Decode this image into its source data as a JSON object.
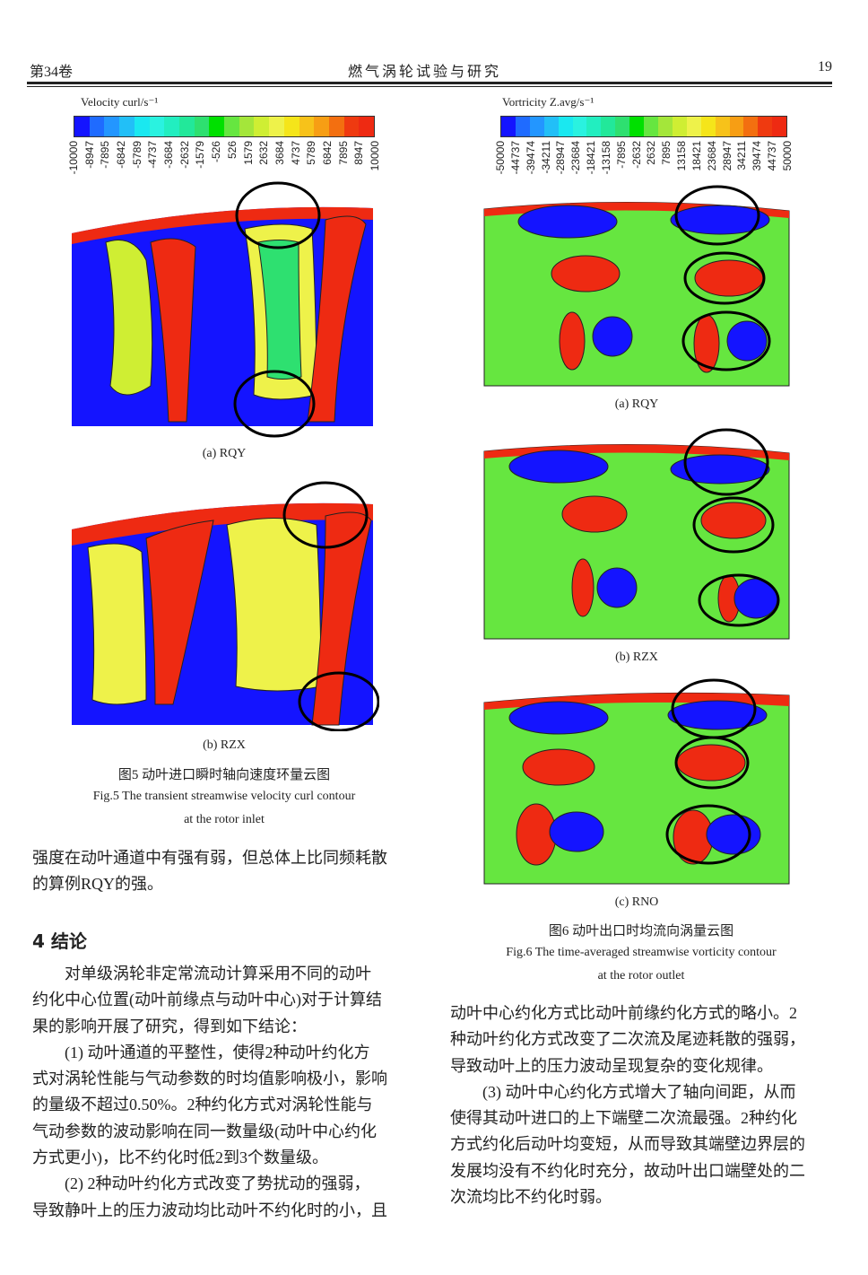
{
  "header": {
    "volume": "第34卷",
    "journal": "燃气涡轮试验与研究",
    "page": "19"
  },
  "fig5": {
    "colorbar_title": "Velocity curl/s⁻¹",
    "ticks": [
      "-10000",
      "-8947",
      "-7895",
      "-6842",
      "-5789",
      "-4737",
      "-3684",
      "-2632",
      "-1579",
      "-526",
      "526",
      "1579",
      "2632",
      "3684",
      "4737",
      "5789",
      "6842",
      "7895",
      "8947",
      "10000"
    ],
    "sub_a": "(a)  RQY",
    "sub_b": "(b)  RZX",
    "caption_cn": "图5  动叶进口瞬时轴向速度环量云图",
    "caption_en_1": "Fig.5  The transient streamwise velocity curl contour",
    "caption_en_2": "at the rotor inlet"
  },
  "fig6": {
    "colorbar_title": "Vortricity Z.avg/s⁻¹",
    "ticks": [
      "-50000",
      "-44737",
      "-39474",
      "-34211",
      "-28947",
      "-23684",
      "-18421",
      "-13158",
      "-7895",
      "-2632",
      "2632",
      "7895",
      "13158",
      "18421",
      "23684",
      "28947",
      "34211",
      "39474",
      "44737",
      "50000"
    ],
    "sub_a": "(a)  RQY",
    "sub_b": "(b)  RZX",
    "sub_c": "(c)  RNO",
    "caption_cn": "图6  动叶出口时均流向涡量云图",
    "caption_en_1": "Fig.6  The time-averaged streamwise vorticity contour",
    "caption_en_2": "at the rotor outlet"
  },
  "colors": [
    "#1414ff",
    "#1f6bff",
    "#2396ff",
    "#22bff7",
    "#1ae8f0",
    "#2af2e0",
    "#22eec0",
    "#22e89a",
    "#2ee070",
    "#00e000",
    "#66e640",
    "#a4e63a",
    "#cfee33",
    "#eef24a",
    "#f5e51a",
    "#f7c21a",
    "#f79e14",
    "#f36f10",
    "#ef3a10",
    "#ee2a12"
  ],
  "left_text": {
    "cont": [
      "强度在动叶通道中有强有弱，但总体上比同频耗散",
      "的算例RQY的强。"
    ],
    "heading": "4  结论",
    "para": [
      "对单级涡轮非定常流动计算采用不同的动叶",
      "约化中心位置(动叶前缘点与动叶中心)对于计算结",
      "果的影响开展了研究，得到如下结论：",
      "(1)  动叶通道的平整性，使得2种动叶约化方",
      "式对涡轮性能与气动参数的时均值影响极小，影响",
      "的量级不超过0.50%。2种约化方式对涡轮性能与",
      "气动参数的波动影响在同一数量级(动叶中心约化",
      "方式更小)，比不约化时低2到3个数量级。",
      "(2)  2种动叶约化方式改变了势扰动的强弱，",
      "导致静叶上的压力波动均比动叶不约化时的小，且"
    ]
  },
  "right_text": [
    "动叶中心约化方式比动叶前缘约化方式的略小。2",
    "种动叶约化方式改变了二次流及尾迹耗散的强弱，",
    "导致动叶上的压力波动呈现复杂的变化规律。",
    "(3)  动叶中心约化方式增大了轴向间距，从而",
    "使得其动叶进口的上下端壁二次流最强。2种约化",
    "方式约化后动叶均变短，从而导致其端壁边界层的",
    "发展均没有不约化时充分，故动叶出口端壁处的二",
    "次流均比不约化时弱。"
  ]
}
